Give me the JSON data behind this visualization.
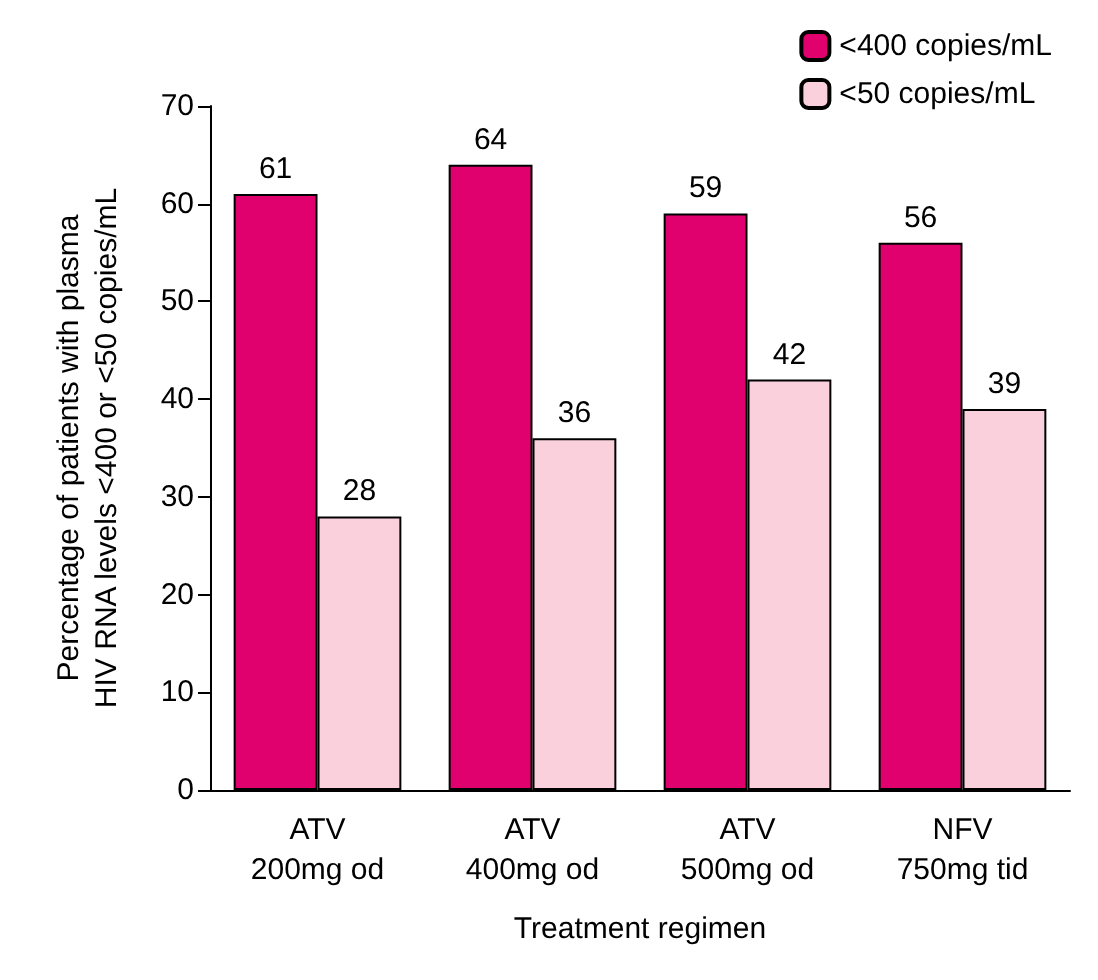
{
  "chart_data": {
    "type": "bar",
    "xlabel": "Treatment regimen",
    "ylabel": "Percentage of patients with plasma\nHIV RNA levels <400 or <50 copies/mL",
    "categories": [
      "ATV\n200mg od",
      "ATV\n400mg od",
      "ATV\n500mg od",
      "NFV\n750mg tid"
    ],
    "series": [
      {
        "name": "<400 copies/mL",
        "color": "#e0006e",
        "values": [
          61,
          64,
          59,
          56
        ]
      },
      {
        "name": "<50 copies/mL",
        "color": "#f9d0dc",
        "values": [
          28,
          36,
          42,
          39
        ]
      }
    ],
    "ylim": [
      0,
      70
    ],
    "yticks": [
      0,
      10,
      20,
      30,
      40,
      50,
      60,
      70
    ],
    "grid": false,
    "legend": "top right",
    "data_labels": true
  }
}
